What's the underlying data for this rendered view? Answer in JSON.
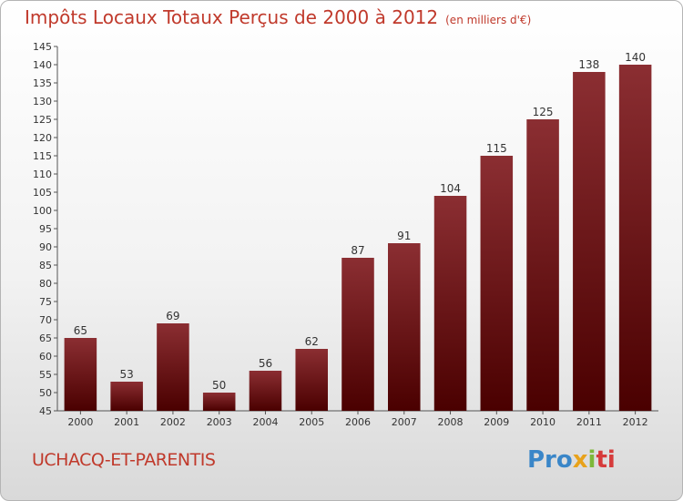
{
  "title": "Impôts Locaux Totaux Perçus de 2000 à 2012",
  "unit_label": "(en milliers d'€)",
  "commune": "UCHACQ-ET-PARENTIS",
  "logo": {
    "p1": "Pro",
    "p2": "x",
    "p3": "i",
    "p4": "ti"
  },
  "colors": {
    "bar_top": "#8b2e32",
    "bar_bottom": "#4a0000",
    "title": "#c0392b"
  },
  "chart_data": {
    "type": "bar",
    "title": "Impôts Locaux Totaux Perçus de 2000 à 2012",
    "xlabel": "",
    "ylabel": "en milliers d'€",
    "categories": [
      "2000",
      "2001",
      "2002",
      "2003",
      "2004",
      "2005",
      "2006",
      "2007",
      "2008",
      "2009",
      "2010",
      "2011",
      "2012"
    ],
    "values": [
      65,
      53,
      69,
      50,
      56,
      62,
      87,
      91,
      104,
      115,
      125,
      138,
      140
    ],
    "ylim": [
      45,
      145
    ],
    "ytick_step": 5,
    "grid": false
  }
}
